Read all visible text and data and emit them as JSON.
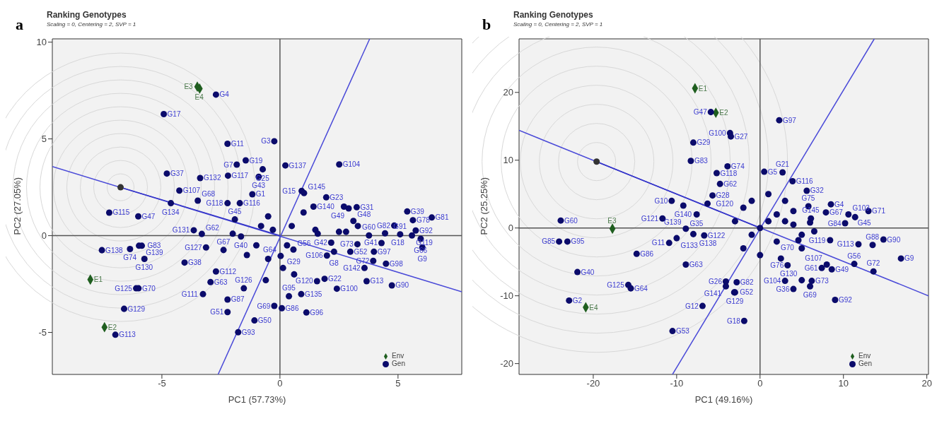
{
  "chart_data": [
    {
      "type": "scatter",
      "title": "Ranking Genotypes",
      "subtitle": "Scaling = 0, Centering = 2, SVP = 1",
      "annotations": [
        "a"
      ],
      "xlabel": "PC1 (57.73%)",
      "ylabel": "PC2 (27.05%)",
      "xlim": [
        -9.64,
        7.7
      ],
      "xticks": [
        -5,
        0,
        5
      ],
      "ylim": [
        -7.17,
        10.17
      ],
      "yticks": [
        -5,
        0,
        5,
        10
      ],
      "legend": "bottom right",
      "series": [
        {
          "type": "line",
          "color": "#555555",
          "x": [
            0,
            0
          ],
          "values": [
            -7.17,
            10.17
          ]
        },
        {
          "type": "line",
          "color": "#555555",
          "x": [
            -9.64,
            7.7
          ],
          "values": [
            0,
            0
          ]
        },
        {
          "type": "line",
          "color": "#4a4ad8",
          "x": [
            -9.64,
            7.7
          ],
          "values": [
            3.57,
            -2.9
          ]
        },
        {
          "type": "line",
          "color": "#4a4ad8",
          "x": [
            -2.62,
            3.8
          ],
          "values": [
            -7.17,
            10.17
          ]
        },
        {
          "type": "line",
          "color": "#3535c8",
          "x": [
            0,
            -6.75
          ],
          "values": [
            0,
            2.5
          ]
        },
        {
          "type": "scatter",
          "color": "#333333",
          "marker": "circle",
          "x": [
            -6.75
          ],
          "values": [
            2.5
          ]
        },
        {
          "name": "Env",
          "color": "#1f5e1f",
          "marker": "diamond",
          "x": [
            -8.03,
            -7.43,
            -3.5,
            -3.4
          ],
          "values": [
            -2.27,
            -4.73,
            7.7,
            7.6
          ],
          "value_labels": [
            "E1",
            "E2",
            "E3",
            "E4"
          ]
        },
        {
          "name": "Gen",
          "color": "#0b0b6b",
          "marker": "circle",
          "x": [
            -2.71,
            -4.92,
            -2.22,
            -0.24,
            -1.45,
            -1.83,
            -4.79,
            -3.38,
            -2.2,
            -0.73,
            -0.9,
            -4.26,
            -1.17,
            -2.22,
            -4.62,
            -3.48,
            -1.7,
            -7.23,
            -6.0,
            -3.65,
            -3.31,
            -1.65,
            -7.54,
            -6.35,
            -5.97,
            -5.85,
            -5.74,
            -3.13,
            -2.39,
            -4.04,
            -2.71,
            -2.94,
            -3.26,
            -6.09,
            -5.99,
            -6.6,
            -6.97,
            -2.22,
            -2.22,
            -1.77,
            -1.08,
            -1.53,
            -0.24,
            -1.91,
            0.23,
            2.51,
            0.92,
            1.02,
            1.96,
            1.42,
            2.91,
            3.25,
            3.11,
            5.39,
            5.63,
            6.43,
            4.84,
            4.45,
            5.75,
            5.09,
            5.59,
            5.96,
            6.03,
            4.3,
            3.77,
            3.98,
            3.28,
            4.49,
            3.95,
            3.58,
            3.67,
            4.74,
            2.98,
            1.99,
            2.29,
            2.17,
            1.89,
            2.41,
            1.57,
            0.9,
            0.38,
            1.12,
            0.08,
            0.13,
            0.03,
            0.57,
            2.71,
            -0.5,
            -0.3,
            0.5,
            1.0,
            -0.8,
            -1.0,
            -0.5,
            0.3,
            1.5,
            2.5,
            -1.4,
            -2.0,
            -0.6,
            0.6,
            2.8,
            3.3,
            1.6
          ],
          "values": [
            7.29,
            6.28,
            4.75,
            4.88,
            3.89,
            3.67,
            3.21,
            2.98,
            3.1,
            3.43,
            3.04,
            2.33,
            2.14,
            1.68,
            1.68,
            1.81,
            1.68,
            1.19,
            1.0,
            0.28,
            0.09,
            -0.04,
            -0.75,
            -0.69,
            -0.52,
            -0.52,
            -1.2,
            -0.61,
            -0.74,
            -1.39,
            -1.85,
            -2.4,
            -3.02,
            -2.72,
            -2.72,
            -3.78,
            -5.12,
            -3.3,
            -3.95,
            -4.99,
            -4.38,
            -2.72,
            -3.63,
            0.84,
            3.63,
            3.68,
            2.31,
            2.2,
            1.98,
            1.5,
            1.41,
            1.47,
            0.76,
            1.25,
            0.8,
            0.94,
            0.52,
            0.12,
            0.27,
            0.07,
            0.01,
            -0.16,
            -0.61,
            -0.38,
            0.01,
            -0.83,
            -0.44,
            -1.45,
            -1.3,
            -1.67,
            -2.35,
            -2.57,
            -0.83,
            -1.03,
            -0.83,
            -0.36,
            -2.23,
            -2.74,
            -2.35,
            -3.02,
            -3.13,
            -3.97,
            -3.75,
            -1.67,
            -1.05,
            -0.72,
            1.5,
            1.0,
            0.3,
            0.5,
            1.2,
            0.5,
            -0.5,
            -1.2,
            -0.5,
            0.3,
            0.2,
            -1.0,
            0.1,
            -2.3,
            -2.0,
            0.2,
            0.5,
            0.1
          ],
          "value_labels": [
            "G4",
            "G17",
            "G11",
            "G3",
            "G19",
            "G7",
            "G37",
            "G132",
            "G117",
            "G25",
            "G43",
            "G107",
            "G1",
            "G118",
            "G134",
            "G68",
            "G116",
            "G115",
            "G47",
            "G131",
            "G62",
            "G40",
            "G138",
            "G74",
            "G83",
            "G139",
            "G130",
            "G127",
            "G67",
            "G38",
            "G112",
            "G63",
            "G111",
            "G125",
            "G70",
            "G129",
            "G113",
            "G87",
            "G51",
            "G93",
            "G50",
            "G126",
            "G69",
            "G45",
            "G137",
            "G104",
            "G15",
            "G145",
            "G23",
            "G140",
            "G49",
            "G31",
            "G48",
            "G39",
            "G78",
            "G81",
            "G82",
            "G18",
            "G92",
            "G91",
            "G119",
            "G66",
            "G9",
            "G41",
            "G60",
            "G97",
            "G73",
            "G98",
            "G72",
            "G142",
            "G13",
            "G90",
            "G52",
            "G106",
            "G8",
            "G42",
            "G22",
            "G100",
            "G120",
            "G135",
            "G95",
            "G96",
            "G86",
            "G29",
            "G64",
            "G56",
            null,
            null,
            null,
            null,
            null,
            null,
            null,
            null,
            null,
            null,
            null,
            null,
            null,
            null,
            null,
            null,
            null,
            null
          ]
        }
      ]
    },
    {
      "type": "scatter",
      "title": "Ranking Genotypes",
      "subtitle": "Scaling = 0, Centering = 2, SVP = 1",
      "annotations": [
        "b"
      ],
      "xlabel": "PC1 (49.16%)",
      "ylabel": "PC2 (25.25%)",
      "xlim": [
        -28.9,
        20.2
      ],
      "xticks": [
        -20,
        -10,
        0,
        10,
        20
      ],
      "ylim": [
        -21.6,
        27.9
      ],
      "yticks": [
        -20,
        -10,
        0,
        10,
        20
      ],
      "legend": "bottom right",
      "series": [
        {
          "type": "line",
          "color": "#555555",
          "x": [
            0,
            0
          ],
          "values": [
            -21.6,
            27.9
          ]
        },
        {
          "type": "line",
          "color": "#555555",
          "x": [
            -28.9,
            20.2
          ],
          "values": [
            0,
            0
          ]
        },
        {
          "type": "line",
          "color": "#4a4ad8",
          "x": [
            -28.9,
            20.2
          ],
          "values": [
            14.4,
            -10.0
          ]
        },
        {
          "type": "line",
          "color": "#4a4ad8",
          "x": [
            -10.5,
            13.7
          ],
          "values": [
            -21.6,
            27.9
          ]
        },
        {
          "type": "line",
          "color": "#3535c8",
          "x": [
            0,
            -19.6
          ],
          "values": [
            0,
            9.8
          ]
        },
        {
          "type": "scatter",
          "color": "#333333",
          "marker": "circle",
          "x": [
            -19.6
          ],
          "values": [
            9.8
          ]
        },
        {
          "name": "Env",
          "color": "#1f5e1f",
          "marker": "diamond",
          "x": [
            -7.8,
            -5.3,
            -17.7,
            -20.9
          ],
          "values": [
            20.6,
            17.0,
            -0.1,
            -11.7
          ],
          "value_labels": [
            "E1",
            "E2",
            "E3",
            "E4"
          ]
        },
        {
          "name": "Gen",
          "color": "#0b0b6b",
          "marker": "circle",
          "x": [
            -5.9,
            -23.9,
            -24.1,
            -23.1,
            -21.9,
            -22.9,
            -15.8,
            -15.5,
            -10.5,
            -6.9,
            -8.0,
            -8.3,
            -3.9,
            -5.2,
            -4.8,
            -5.7,
            -10.6,
            -9.2,
            -6.3,
            -7.6,
            -11.7,
            -8.9,
            -10.0,
            -14.8,
            -10.9,
            -8.9,
            -8.0,
            -6.7,
            -4.1,
            -4.1,
            -3.1,
            2.3,
            -3.6,
            -3.5,
            0.5,
            2.7,
            3.9,
            5.6,
            5.8,
            8.5,
            7.9,
            10.6,
            13.0,
            11.4,
            10.2,
            6.1,
            11.8,
            13.5,
            14.8,
            16.9,
            11.3,
            13.6,
            8.4,
            8.0,
            8.6,
            7.4,
            6.2,
            9.0,
            6.0,
            4.0,
            3.0,
            5.0,
            3.3,
            4.6,
            -3.0,
            -2.8,
            -1.9,
            0,
            1,
            2,
            3,
            4,
            5,
            6,
            2,
            -1,
            -2,
            -1,
            1,
            3,
            5,
            -2,
            0,
            2.5,
            -3,
            4,
            6.5
          ],
          "values": [
            17.1,
            1.1,
            -2.0,
            -2.0,
            -6.5,
            -10.7,
            -8.4,
            -8.9,
            -15.2,
            -11.5,
            12.6,
            9.9,
            9.1,
            8.1,
            6.5,
            4.8,
            4.0,
            3.3,
            3.6,
            2.0,
            1.4,
            -0.1,
            -1.5,
            -3.8,
            -2.2,
            -5.4,
            -0.9,
            -1.1,
            -7.9,
            -8.6,
            -9.5,
            15.9,
            14.0,
            13.5,
            8.3,
            8.2,
            6.9,
            5.5,
            3.2,
            3.5,
            2.3,
            2.0,
            2.5,
            1.6,
            0.7,
            1.4,
            -2.4,
            -2.5,
            -1.7,
            -4.5,
            -5.3,
            -6.4,
            -1.8,
            -5.4,
            -6.1,
            -5.9,
            -7.8,
            -10.6,
            -8.6,
            -9.0,
            -7.8,
            -7.7,
            -5.5,
            -1.8,
            -9.5,
            -8.0,
            -13.7,
            0,
            1,
            2,
            1,
            0.5,
            -1,
            0.8,
            -2,
            -1,
            3,
            4,
            5,
            4,
            -3,
            -3,
            -4,
            -4.5,
            1,
            2.5,
            -0.5
          ],
          "value_labels": [
            "G47",
            "G60",
            "G85",
            "G95",
            "G40",
            "G2",
            "G125",
            "G64",
            "G53",
            "G12",
            "G29",
            "G83",
            "G74",
            "G118",
            "G62",
            "G28",
            "G10",
            "G140",
            "G120",
            "G35",
            "G121",
            "G139",
            "G133",
            "G86",
            "G11",
            "G63",
            "G138",
            "G122",
            "G26",
            "G141",
            "G52",
            "G97",
            "G100",
            "G27",
            "G5",
            "G21",
            "G116",
            "G32",
            "G75",
            "G4",
            "G67",
            "G103",
            "G71",
            "G45",
            "G84",
            "G145",
            "G113",
            "G88",
            "G90",
            "G9",
            "G56",
            "G72",
            "G119",
            "G107",
            "G49",
            "G61",
            "G73",
            "G92",
            "G69",
            "G36",
            "G104",
            "G130",
            "G76",
            "G70",
            "G129",
            "G82",
            "G18",
            null,
            null,
            null,
            null,
            null,
            null,
            null,
            null,
            null,
            null,
            null,
            null,
            null,
            null,
            null,
            null,
            null,
            null,
            null,
            null
          ]
        }
      ]
    }
  ]
}
